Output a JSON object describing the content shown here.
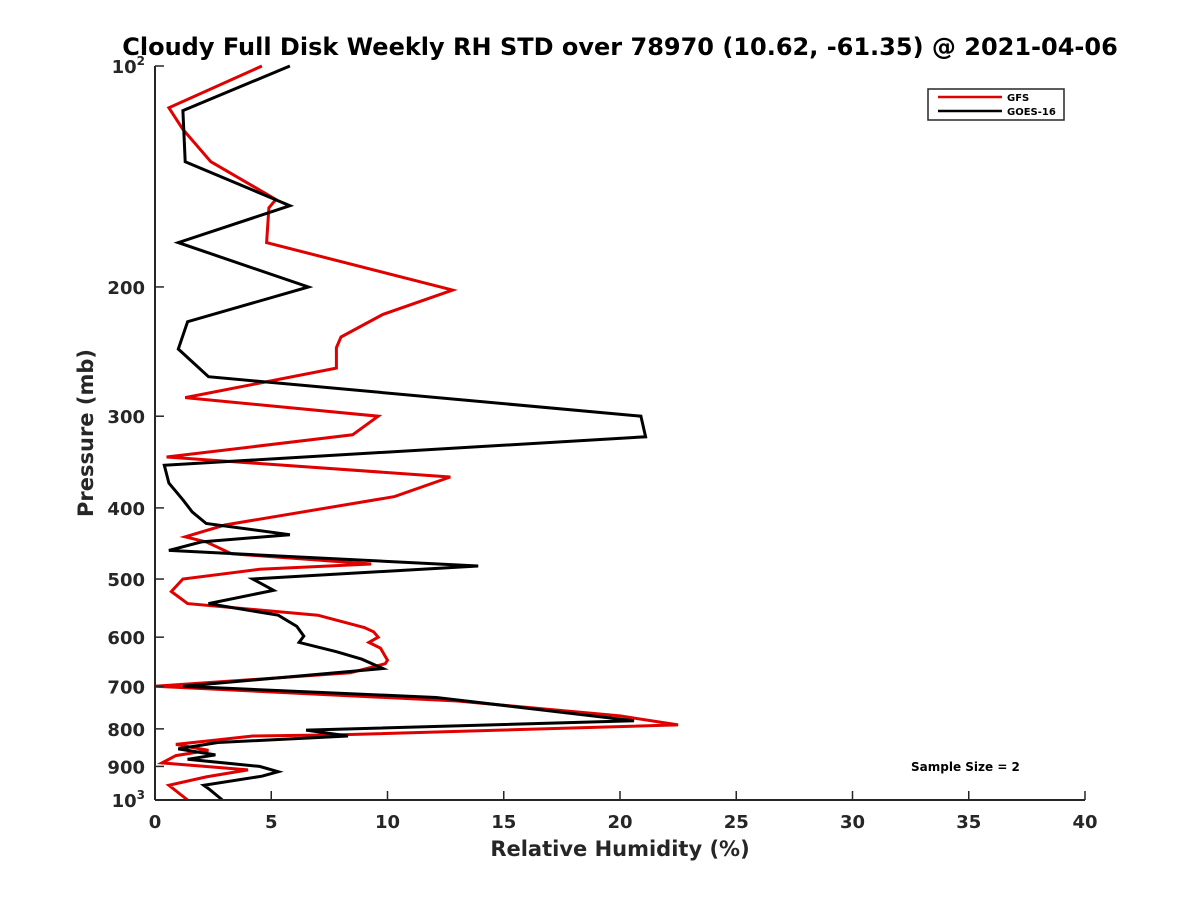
{
  "chart_data": {
    "type": "line",
    "title": "Cloudy Full Disk Weekly RH STD over 78970 (10.62, -61.35) @ 2021-04-06",
    "xlabel": "Relative Humidity (%)",
    "ylabel": "Pressure (mb)",
    "xlim": [
      0,
      40
    ],
    "ylim": [
      100,
      1000
    ],
    "yscale": "log",
    "y_reversed": true,
    "grid": false,
    "legend_position": "top-right",
    "x_ticks": [
      "0",
      "5",
      "10",
      "15",
      "20",
      "25",
      "30",
      "35",
      "40"
    ],
    "y_ticks": [
      {
        "value": 200,
        "label": "200"
      },
      {
        "value": 300,
        "label": "300"
      },
      {
        "value": 400,
        "label": "400"
      },
      {
        "value": 500,
        "label": "500"
      },
      {
        "value": 600,
        "label": "600"
      },
      {
        "value": 700,
        "label": "700"
      },
      {
        "value": 800,
        "label": "800"
      },
      {
        "value": 900,
        "label": "900"
      }
    ],
    "y_edge_ticks": [
      {
        "value": 100,
        "base": "10",
        "exp": "2"
      },
      {
        "value": 1000,
        "base": "10",
        "exp": "3"
      }
    ],
    "annotation": "Sample Size = 2",
    "series": [
      {
        "name": "GFS",
        "color": "#e00000",
        "points": [
          [
            4.6,
            100
          ],
          [
            0.6,
            114
          ],
          [
            1.2,
            122
          ],
          [
            2.4,
            135
          ],
          [
            5.2,
            152
          ],
          [
            4.9,
            156
          ],
          [
            4.8,
            174
          ],
          [
            12.8,
            202
          ],
          [
            9.8,
            218
          ],
          [
            8.0,
            234
          ],
          [
            7.8,
            242
          ],
          [
            7.8,
            258
          ],
          [
            1.3,
            283
          ],
          [
            9.6,
            300
          ],
          [
            8.5,
            318
          ],
          [
            0.5,
            341
          ],
          [
            12.7,
            363
          ],
          [
            10.3,
            386
          ],
          [
            3.0,
            422
          ],
          [
            1.3,
            438
          ],
          [
            2.2,
            445
          ],
          [
            3.3,
            462
          ],
          [
            9.3,
            477
          ],
          [
            4.5,
            485
          ],
          [
            1.2,
            500
          ],
          [
            0.7,
            520
          ],
          [
            1.4,
            540
          ],
          [
            7.0,
            560
          ],
          [
            9.0,
            582
          ],
          [
            9.4,
            590
          ],
          [
            9.6,
            600
          ],
          [
            9.2,
            610
          ],
          [
            9.7,
            621
          ],
          [
            10.0,
            645
          ],
          [
            9.9,
            652
          ],
          [
            8.4,
            671
          ],
          [
            0.0,
            700
          ],
          [
            13.0,
            733
          ],
          [
            20.0,
            768
          ],
          [
            22.5,
            790
          ],
          [
            8.0,
            815
          ],
          [
            4.2,
            818
          ],
          [
            2.4,
            830
          ],
          [
            0.9,
            840
          ],
          [
            2.3,
            856
          ],
          [
            0.9,
            870
          ],
          [
            0.3,
            890
          ],
          [
            4.0,
            910
          ],
          [
            2.2,
            930
          ],
          [
            0.6,
            955
          ],
          [
            1.4,
            1000
          ]
        ]
      },
      {
        "name": "GOES-16",
        "color": "#000000",
        "points": [
          [
            5.8,
            100
          ],
          [
            1.2,
            115
          ],
          [
            1.3,
            135
          ],
          [
            5.8,
            155
          ],
          [
            1.0,
            174
          ],
          [
            6.6,
            200
          ],
          [
            1.4,
            223
          ],
          [
            1.0,
            243
          ],
          [
            2.3,
            265
          ],
          [
            20.9,
            300
          ],
          [
            21.1,
            320
          ],
          [
            0.4,
            350
          ],
          [
            0.6,
            370
          ],
          [
            1.2,
            390
          ],
          [
            1.6,
            405
          ],
          [
            2.2,
            420
          ],
          [
            5.8,
            435
          ],
          [
            2.0,
            445
          ],
          [
            0.6,
            457
          ],
          [
            13.9,
            480
          ],
          [
            4.2,
            500
          ],
          [
            5.1,
            518
          ],
          [
            2.3,
            540
          ],
          [
            5.3,
            560
          ],
          [
            6.1,
            580
          ],
          [
            6.4,
            598
          ],
          [
            6.2,
            610
          ],
          [
            7.8,
            628
          ],
          [
            8.9,
            643
          ],
          [
            9.8,
            662
          ],
          [
            1.2,
            700
          ],
          [
            12.1,
            725
          ],
          [
            20.6,
            780
          ],
          [
            6.5,
            803
          ],
          [
            8.3,
            818
          ],
          [
            2.7,
            835
          ],
          [
            1.0,
            852
          ],
          [
            2.6,
            868
          ],
          [
            1.4,
            880
          ],
          [
            4.5,
            900
          ],
          [
            5.3,
            915
          ],
          [
            4.6,
            928
          ],
          [
            2.1,
            955
          ],
          [
            2.3,
            965
          ],
          [
            2.9,
            1000
          ]
        ]
      }
    ]
  }
}
